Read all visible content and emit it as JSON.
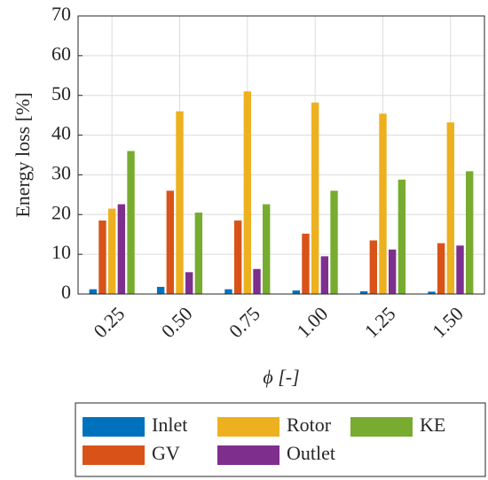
{
  "chart_data": {
    "type": "bar",
    "xlabel": "ϕ [-]",
    "ylabel": "Energy loss [%]",
    "categories": [
      "0.25",
      "0.50",
      "0.75",
      "1.00",
      "1.25",
      "1.50"
    ],
    "series": [
      {
        "name": "Inlet",
        "color": "#0072bd",
        "values": [
          1.2,
          1.8,
          1.2,
          0.9,
          0.7,
          0.6
        ]
      },
      {
        "name": "GV",
        "color": "#d95319",
        "values": [
          18.5,
          26,
          18.5,
          15.2,
          13.5,
          12.8
        ]
      },
      {
        "name": "Rotor",
        "color": "#edb120",
        "values": [
          21.5,
          46,
          51,
          48.2,
          45.4,
          43.2
        ]
      },
      {
        "name": "Outlet",
        "color": "#7e2f8e",
        "values": [
          22.6,
          5.5,
          6.3,
          9.5,
          11.2,
          12.2
        ]
      },
      {
        "name": "KE",
        "color": "#77ac30",
        "values": [
          36,
          20.5,
          22.6,
          26,
          28.8,
          30.9
        ]
      }
    ],
    "ylim": [
      0,
      70
    ],
    "yticks": [
      0,
      10,
      20,
      30,
      40,
      50,
      60,
      70
    ],
    "grid": true,
    "legend": "bottom"
  }
}
